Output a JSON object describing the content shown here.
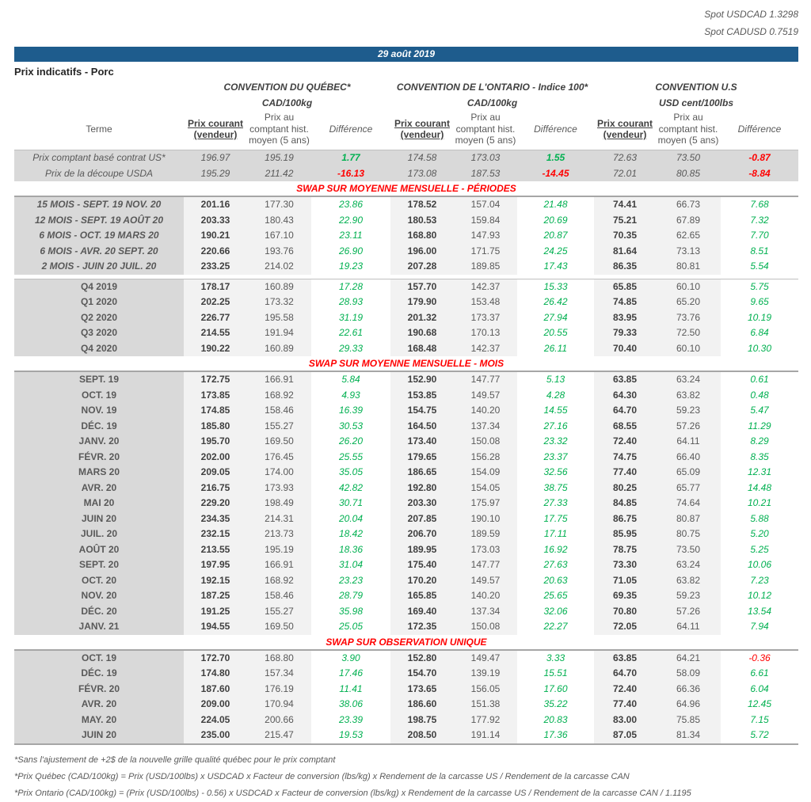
{
  "spot_usdcad": "Spot USDCAD 1.3298",
  "spot_cadusd": "Spot CADUSD 0.7519",
  "date_banner": "29 août 2019",
  "page_title": "Prix indicatifs - Porc",
  "colors": {
    "banner_blue": "#1E5C8D",
    "terme_bg": "#D9D9D9",
    "price_bg": "#F2F2F2",
    "positive_green": "#00B050",
    "negative_red": "#FF0000",
    "section_red": "#FF0000"
  },
  "groups": [
    {
      "title": "CONVENTION DU QUÉBEC*",
      "unit": "CAD/100kg"
    },
    {
      "title": "CONVENTION DE L'ONTARIO - Indice 100*",
      "unit": "CAD/100kg"
    },
    {
      "title": "CONVENTION U.S",
      "unit": "USD cent/100lbs"
    }
  ],
  "column_headers": {
    "terme": "Terme",
    "current": "Prix courant (vendeur)",
    "hist": "Prix au comptant hist. moyen (5 ans)",
    "diff": "Différence"
  },
  "spot_rows": [
    {
      "terme": "Prix comptant basé contrat US*",
      "values": [
        "196.97",
        "195.19",
        "1.77",
        "174.58",
        "173.03",
        "1.55",
        "72.63",
        "73.50",
        "-0.87"
      ]
    },
    {
      "terme": "Prix de la découpe USDA",
      "values": [
        "195.29",
        "211.42",
        "-16.13",
        "173.08",
        "187.53",
        "-14.45",
        "72.01",
        "80.85",
        "-8.84"
      ]
    }
  ],
  "sections": [
    {
      "title": "SWAP SUR MOYENNE MENSUELLE - PÉRIODES",
      "blocks": [
        [
          {
            "terme": "15 MOIS -  SEPT. 19 NOV. 20",
            "italic": true,
            "values": [
              "201.16",
              "177.30",
              "23.86",
              "178.52",
              "157.04",
              "21.48",
              "74.41",
              "66.73",
              "7.68"
            ]
          },
          {
            "terme": "12 MOIS -  SEPT. 19 AOÛT 20",
            "italic": true,
            "values": [
              "203.33",
              "180.43",
              "22.90",
              "180.53",
              "159.84",
              "20.69",
              "75.21",
              "67.89",
              "7.32"
            ]
          },
          {
            "terme": "6 MOIS -  OCT. 19 MARS 20",
            "italic": true,
            "values": [
              "190.21",
              "167.10",
              "23.11",
              "168.80",
              "147.93",
              "20.87",
              "70.35",
              "62.65",
              "7.70"
            ]
          },
          {
            "terme": "6 MOIS -  AVR. 20 SEPT. 20",
            "italic": true,
            "values": [
              "220.66",
              "193.76",
              "26.90",
              "196.00",
              "171.75",
              "24.25",
              "81.64",
              "73.13",
              "8.51"
            ]
          },
          {
            "terme": "2 MOIS -  JUIN 20  JUIL. 20",
            "italic": true,
            "values": [
              "233.25",
              "214.02",
              "19.23",
              "207.28",
              "189.85",
              "17.43",
              "86.35",
              "80.81",
              "5.54"
            ]
          }
        ],
        [
          {
            "terme": "Q4 2019",
            "values": [
              "178.17",
              "160.89",
              "17.28",
              "157.70",
              "142.37",
              "15.33",
              "65.85",
              "60.10",
              "5.75"
            ]
          },
          {
            "terme": "Q1 2020",
            "values": [
              "202.25",
              "173.32",
              "28.93",
              "179.90",
              "153.48",
              "26.42",
              "74.85",
              "65.20",
              "9.65"
            ]
          },
          {
            "terme": "Q2 2020",
            "values": [
              "226.77",
              "195.58",
              "31.19",
              "201.32",
              "173.37",
              "27.94",
              "83.95",
              "73.76",
              "10.19"
            ]
          },
          {
            "terme": "Q3 2020",
            "values": [
              "214.55",
              "191.94",
              "22.61",
              "190.68",
              "170.13",
              "20.55",
              "79.33",
              "72.50",
              "6.84"
            ]
          },
          {
            "terme": "Q4 2020",
            "values": [
              "190.22",
              "160.89",
              "29.33",
              "168.48",
              "142.37",
              "26.11",
              "70.40",
              "60.10",
              "10.30"
            ]
          }
        ]
      ]
    },
    {
      "title": "SWAP SUR MOYENNE MENSUELLE - MOIS",
      "blocks": [
        [
          {
            "terme": "SEPT. 19",
            "values": [
              "172.75",
              "166.91",
              "5.84",
              "152.90",
              "147.77",
              "5.13",
              "63.85",
              "63.24",
              "0.61"
            ]
          },
          {
            "terme": "OCT. 19",
            "values": [
              "173.85",
              "168.92",
              "4.93",
              "153.85",
              "149.57",
              "4.28",
              "64.30",
              "63.82",
              "0.48"
            ]
          },
          {
            "terme": "NOV. 19",
            "values": [
              "174.85",
              "158.46",
              "16.39",
              "154.75",
              "140.20",
              "14.55",
              "64.70",
              "59.23",
              "5.47"
            ]
          },
          {
            "terme": "DÉC. 19",
            "values": [
              "185.80",
              "155.27",
              "30.53",
              "164.50",
              "137.34",
              "27.16",
              "68.55",
              "57.26",
              "11.29"
            ]
          },
          {
            "terme": "JANV. 20",
            "values": [
              "195.70",
              "169.50",
              "26.20",
              "173.40",
              "150.08",
              "23.32",
              "72.40",
              "64.11",
              "8.29"
            ]
          },
          {
            "terme": "FÉVR. 20",
            "values": [
              "202.00",
              "176.45",
              "25.55",
              "179.65",
              "156.28",
              "23.37",
              "74.75",
              "66.40",
              "8.35"
            ]
          },
          {
            "terme": "MARS 20",
            "values": [
              "209.05",
              "174.00",
              "35.05",
              "186.65",
              "154.09",
              "32.56",
              "77.40",
              "65.09",
              "12.31"
            ]
          },
          {
            "terme": "AVR. 20",
            "values": [
              "216.75",
              "173.93",
              "42.82",
              "192.80",
              "154.05",
              "38.75",
              "80.25",
              "65.77",
              "14.48"
            ]
          },
          {
            "terme": "MAI 20",
            "values": [
              "229.20",
              "198.49",
              "30.71",
              "203.30",
              "175.97",
              "27.33",
              "84.85",
              "74.64",
              "10.21"
            ]
          },
          {
            "terme": "JUIN 20",
            "values": [
              "234.35",
              "214.31",
              "20.04",
              "207.85",
              "190.10",
              "17.75",
              "86.75",
              "80.87",
              "5.88"
            ]
          },
          {
            "terme": "JUIL. 20",
            "values": [
              "232.15",
              "213.73",
              "18.42",
              "206.70",
              "189.59",
              "17.11",
              "85.95",
              "80.75",
              "5.20"
            ]
          },
          {
            "terme": "AOÛT 20",
            "values": [
              "213.55",
              "195.19",
              "18.36",
              "189.95",
              "173.03",
              "16.92",
              "78.75",
              "73.50",
              "5.25"
            ]
          },
          {
            "terme": "SEPT. 20",
            "values": [
              "197.95",
              "166.91",
              "31.04",
              "175.40",
              "147.77",
              "27.63",
              "73.30",
              "63.24",
              "10.06"
            ]
          },
          {
            "terme": "OCT. 20",
            "values": [
              "192.15",
              "168.92",
              "23.23",
              "170.20",
              "149.57",
              "20.63",
              "71.05",
              "63.82",
              "7.23"
            ]
          },
          {
            "terme": "NOV. 20",
            "values": [
              "187.25",
              "158.46",
              "28.79",
              "165.85",
              "140.20",
              "25.65",
              "69.35",
              "59.23",
              "10.12"
            ]
          },
          {
            "terme": "DÉC. 20",
            "values": [
              "191.25",
              "155.27",
              "35.98",
              "169.40",
              "137.34",
              "32.06",
              "70.80",
              "57.26",
              "13.54"
            ]
          },
          {
            "terme": "JANV. 21",
            "values": [
              "194.55",
              "169.50",
              "25.05",
              "172.35",
              "150.08",
              "22.27",
              "72.05",
              "64.11",
              "7.94"
            ]
          }
        ]
      ]
    },
    {
      "title": "SWAP SUR OBSERVATION UNIQUE",
      "blocks": [
        [
          {
            "terme": "OCT. 19",
            "values": [
              "172.70",
              "168.80",
              "3.90",
              "152.80",
              "149.47",
              "3.33",
              "63.85",
              "64.21",
              "-0.36"
            ]
          },
          {
            "terme": "DÉC. 19",
            "values": [
              "174.80",
              "157.34",
              "17.46",
              "154.70",
              "139.19",
              "15.51",
              "64.70",
              "58.09",
              "6.61"
            ]
          },
          {
            "terme": "FÉVR. 20",
            "values": [
              "187.60",
              "176.19",
              "11.41",
              "173.65",
              "156.05",
              "17.60",
              "72.40",
              "66.36",
              "6.04"
            ]
          },
          {
            "terme": "AVR. 20",
            "values": [
              "209.00",
              "170.94",
              "38.06",
              "186.60",
              "151.38",
              "35.22",
              "77.40",
              "64.96",
              "12.45"
            ]
          },
          {
            "terme": "MAY. 20",
            "values": [
              "224.05",
              "200.66",
              "23.39",
              "198.75",
              "177.92",
              "20.83",
              "83.00",
              "75.85",
              "7.15"
            ]
          },
          {
            "terme": "JUIN 20",
            "values": [
              "235.00",
              "215.47",
              "19.53",
              "208.50",
              "191.14",
              "17.36",
              "87.05",
              "81.34",
              "5.72"
            ]
          }
        ]
      ]
    }
  ],
  "footnotes": [
    "*Sans l'ajustement de +2$ de la nouvelle grille qualité québec pour le prix comptant",
    "*Prix Québec (CAD/100kg) = Prix (USD/100lbs) x USDCAD x Facteur de conversion (lbs/kg) x Rendement de la carcasse US / Rendement de la carcasse CAN",
    "*Prix Ontario (CAD/100kg) = (Prix (USD/100lbs) - 0.56) x USDCAD x Facteur de conversion (lbs/kg) x Rendement de la carcasse US / Rendement de la carcasse CAN / 1.1195"
  ]
}
